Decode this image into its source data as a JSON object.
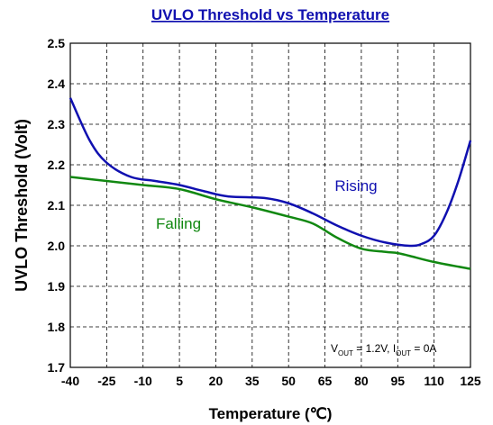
{
  "chart_data": {
    "type": "line",
    "title": "UVLO Threshold vs Temperature",
    "x_label": "Temperature (℃)",
    "y_label": "UVLO Threshold (Volt)",
    "xlim": [
      -40,
      125
    ],
    "xticks": [
      -40,
      -25,
      -10,
      5,
      20,
      35,
      50,
      65,
      80,
      95,
      110,
      125
    ],
    "ylim": [
      1.7,
      2.5
    ],
    "yticks": [
      1.7,
      1.8,
      1.9,
      {
        "value": 2,
        "label": "2.0"
      },
      2.1,
      2.2,
      2.3,
      2.4,
      2.5
    ],
    "grid": true,
    "series": [
      {
        "name": "Rising",
        "color": "#1010b0",
        "x": [
          -40,
          -32,
          -25,
          -15,
          -5,
          5,
          15,
          25,
          40,
          50,
          60,
          70,
          80,
          90,
          100,
          105,
          110,
          115,
          120,
          125
        ],
        "values": [
          2.365,
          2.26,
          2.205,
          2.17,
          2.16,
          2.15,
          2.135,
          2.122,
          2.118,
          2.105,
          2.08,
          2.05,
          2.025,
          2.008,
          2.0,
          2.005,
          2.025,
          2.08,
          2.16,
          2.26
        ]
      },
      {
        "name": "Falling",
        "color": "#118811",
        "x": [
          -40,
          -25,
          -10,
          5,
          20,
          35,
          50,
          60,
          70,
          80,
          90,
          95,
          100,
          110,
          125
        ],
        "values": [
          2.17,
          2.16,
          2.15,
          2.14,
          2.115,
          2.095,
          2.072,
          2.055,
          2.02,
          1.993,
          1.985,
          1.982,
          1.975,
          1.96,
          1.943
        ]
      }
    ],
    "annotation": [
      "V",
      "OUT",
      " = 1.2V, I",
      "OUT",
      " = 0A"
    ]
  }
}
